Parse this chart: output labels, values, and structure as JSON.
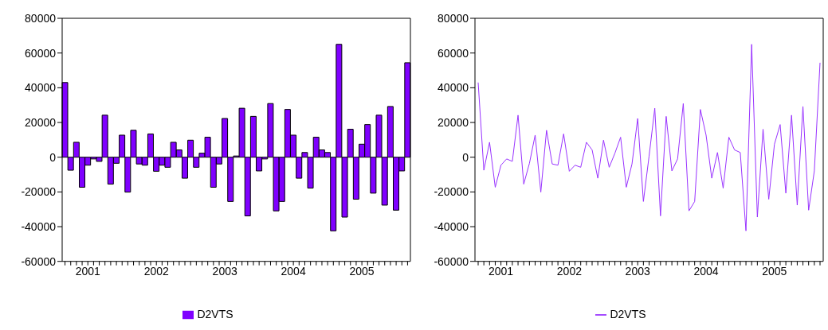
{
  "chart_data": [
    {
      "type": "bar",
      "categories": [
        null,
        null,
        null,
        null,
        "2001",
        null,
        null,
        null,
        null,
        null,
        null,
        null,
        null,
        null,
        null,
        null,
        "2002",
        null,
        null,
        null,
        null,
        null,
        null,
        null,
        null,
        null,
        null,
        null,
        "2003",
        null,
        null,
        null,
        null,
        null,
        null,
        null,
        null,
        null,
        null,
        null,
        "2004",
        null,
        null,
        null,
        null,
        null,
        null,
        null,
        null,
        null,
        null,
        null,
        "2005",
        null,
        null,
        null,
        null,
        null,
        null,
        null,
        null
      ],
      "series": [
        {
          "name": "D2VTS",
          "color": "#7f00ff",
          "values": [
            43000,
            -7500,
            8600,
            -17300,
            -4600,
            -1000,
            -2400,
            24200,
            -15500,
            -3500,
            12700,
            -20100,
            15500,
            -3900,
            -4600,
            13400,
            -8100,
            -4600,
            -5800,
            8600,
            4200,
            -12100,
            9800,
            -5800,
            2300,
            11500,
            -17300,
            -3900,
            22300,
            -25500,
            700,
            28200,
            -33800,
            23500,
            -7900,
            -1000,
            30900,
            -30900,
            -25500,
            27500,
            12700,
            -12100,
            2700,
            -17800,
            11500,
            4200,
            2700,
            -42400,
            65000,
            -34500,
            16100,
            -24200,
            7500,
            18800,
            -20700,
            24200,
            -27600,
            29200,
            -30500,
            -7900,
            54400
          ]
        }
      ],
      "ylim": [
        -60000,
        80000
      ],
      "yticks": [
        -60000,
        -40000,
        -20000,
        0,
        20000,
        40000,
        60000,
        80000
      ],
      "grid": false,
      "legend": "bottom"
    },
    {
      "type": "line",
      "categories": [
        null,
        null,
        null,
        null,
        "2001",
        null,
        null,
        null,
        null,
        null,
        null,
        null,
        null,
        null,
        null,
        null,
        "2002",
        null,
        null,
        null,
        null,
        null,
        null,
        null,
        null,
        null,
        null,
        null,
        "2003",
        null,
        null,
        null,
        null,
        null,
        null,
        null,
        null,
        null,
        null,
        null,
        "2004",
        null,
        null,
        null,
        null,
        null,
        null,
        null,
        null,
        null,
        null,
        null,
        "2005",
        null,
        null,
        null,
        null,
        null,
        null,
        null,
        null
      ],
      "series": [
        {
          "name": "D2VTS",
          "color": "#9933ff",
          "values": [
            43000,
            -7500,
            8600,
            -17300,
            -4600,
            -1000,
            -2400,
            24200,
            -15500,
            -3500,
            12700,
            -20100,
            15500,
            -3900,
            -4600,
            13400,
            -8100,
            -4600,
            -5800,
            8600,
            4200,
            -12100,
            9800,
            -5800,
            2300,
            11500,
            -17300,
            -3900,
            22300,
            -25500,
            700,
            28200,
            -33800,
            23500,
            -7900,
            -1000,
            30900,
            -30900,
            -25500,
            27500,
            12700,
            -12100,
            2700,
            -17800,
            11500,
            4200,
            2700,
            -42400,
            65000,
            -34500,
            16100,
            -24200,
            7500,
            18800,
            -20700,
            24200,
            -27600,
            29200,
            -30500,
            -7900,
            54400
          ]
        }
      ],
      "ylim": [
        -60000,
        80000
      ],
      "yticks": [
        -60000,
        -40000,
        -20000,
        0,
        20000,
        40000,
        60000,
        80000
      ],
      "grid": false,
      "legend": "bottom"
    }
  ]
}
